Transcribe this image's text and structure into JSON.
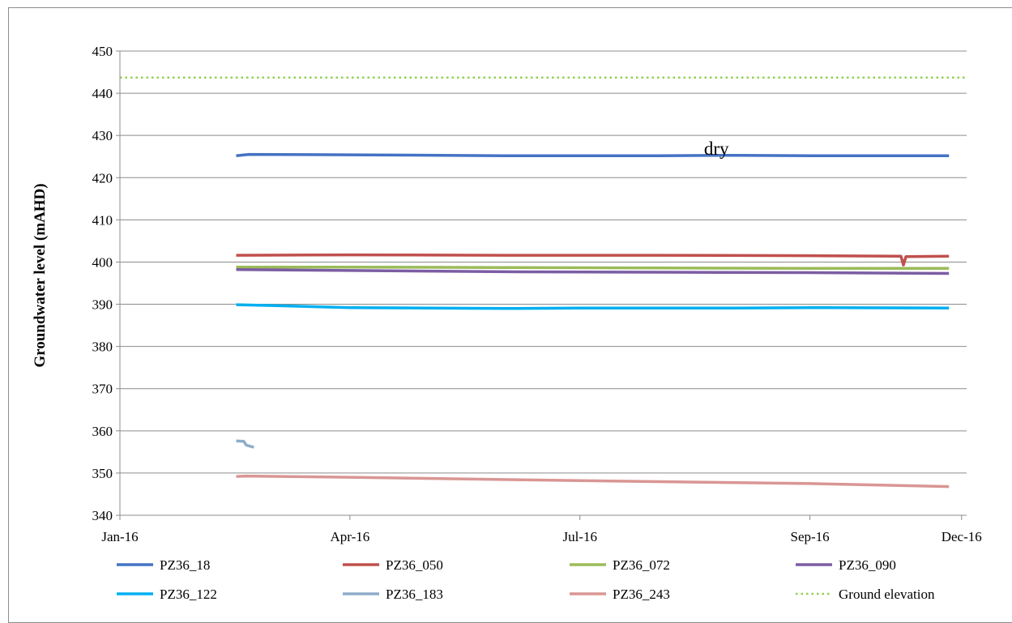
{
  "chart_data": {
    "type": "line",
    "title": "",
    "xlabel": "",
    "ylabel": "Groundwater level (mAHD)",
    "ylim": [
      340,
      450
    ],
    "yticks": [
      340,
      350,
      360,
      370,
      380,
      390,
      400,
      410,
      420,
      430,
      440,
      450
    ],
    "xlim": [
      "2016-01-01",
      "2016-12-01"
    ],
    "xticks": [
      {
        "date": "2016-01-01",
        "label": "Jan-16"
      },
      {
        "date": "2016-04-01",
        "label": "Apr-16"
      },
      {
        "date": "2016-07-01",
        "label": "Jul-16"
      },
      {
        "date": "2016-09-30",
        "label": "Sep-16"
      },
      {
        "date": "2016-11-29",
        "label": "Dec-16"
      }
    ],
    "grid": {
      "horizontal": true,
      "vertical": false
    },
    "legend_position": "bottom",
    "annotations": [
      {
        "text": "dry",
        "x": "2016-08-24",
        "y": 427
      }
    ],
    "series": [
      {
        "name": "PZ36_18",
        "color": "#4472c4",
        "style": "solid",
        "points": [
          [
            "2016-02-16",
            425.2
          ],
          [
            "2016-02-21",
            425.5
          ],
          [
            "2016-04-01",
            425.4
          ],
          [
            "2016-06-01",
            425.2
          ],
          [
            "2016-08-01",
            425.2
          ],
          [
            "2016-09-01",
            425.3
          ],
          [
            "2016-10-01",
            425.2
          ],
          [
            "2016-11-24",
            425.2
          ]
        ]
      },
      {
        "name": "PZ36_050",
        "color": "#c0504d",
        "style": "solid",
        "points": [
          [
            "2016-02-16",
            401.6
          ],
          [
            "2016-04-01",
            401.7
          ],
          [
            "2016-06-01",
            401.6
          ],
          [
            "2016-08-01",
            401.6
          ],
          [
            "2016-09-30",
            401.5
          ],
          [
            "2016-11-05",
            401.4
          ],
          [
            "2016-11-06",
            399.3
          ],
          [
            "2016-11-07",
            401.3
          ],
          [
            "2016-11-24",
            401.4
          ]
        ]
      },
      {
        "name": "PZ36_072",
        "color": "#9bbb59",
        "style": "solid",
        "points": [
          [
            "2016-02-16",
            398.8
          ],
          [
            "2016-04-01",
            398.8
          ],
          [
            "2016-06-01",
            398.7
          ],
          [
            "2016-08-01",
            398.6
          ],
          [
            "2016-09-30",
            398.5
          ],
          [
            "2016-11-24",
            398.5
          ]
        ]
      },
      {
        "name": "PZ36_090",
        "color": "#7b5da3",
        "style": "solid",
        "points": [
          [
            "2016-02-16",
            398.2
          ],
          [
            "2016-04-01",
            398.0
          ],
          [
            "2016-06-01",
            397.7
          ],
          [
            "2016-08-01",
            397.6
          ],
          [
            "2016-09-30",
            397.5
          ],
          [
            "2016-11-24",
            397.3
          ]
        ]
      },
      {
        "name": "PZ36_122",
        "color": "#00b0f0",
        "style": "solid",
        "points": [
          [
            "2016-02-16",
            389.9
          ],
          [
            "2016-03-01",
            389.7
          ],
          [
            "2016-04-01",
            389.2
          ],
          [
            "2016-05-01",
            389.1
          ],
          [
            "2016-06-01",
            389.0
          ],
          [
            "2016-07-01",
            389.1
          ],
          [
            "2016-08-01",
            389.1
          ],
          [
            "2016-09-01",
            389.1
          ],
          [
            "2016-10-01",
            389.2
          ],
          [
            "2016-11-24",
            389.1
          ]
        ]
      },
      {
        "name": "PZ36_183",
        "color": "#8eadc9",
        "style": "solid",
        "points": [
          [
            "2016-02-16",
            357.6
          ],
          [
            "2016-02-19",
            357.5
          ],
          [
            "2016-02-20",
            356.6
          ],
          [
            "2016-02-23",
            356.1
          ]
        ]
      },
      {
        "name": "PZ36_243",
        "color": "#d99694",
        "style": "solid",
        "points": [
          [
            "2016-02-16",
            349.2
          ],
          [
            "2016-02-20",
            349.3
          ],
          [
            "2016-04-01",
            349.0
          ],
          [
            "2016-07-01",
            348.2
          ],
          [
            "2016-09-30",
            347.5
          ],
          [
            "2016-11-24",
            346.8
          ]
        ]
      },
      {
        "name": "Ground elevation",
        "color": "#92d050",
        "style": "dotted",
        "points": [
          [
            "2016-01-01",
            443.7
          ],
          [
            "2016-12-01",
            443.7
          ]
        ]
      }
    ]
  }
}
